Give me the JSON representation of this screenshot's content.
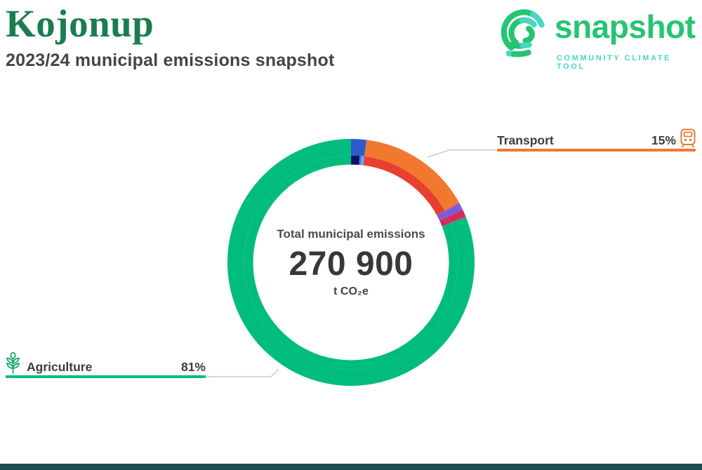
{
  "header": {
    "municipality": "Kojonup",
    "subtitle": "2023/24 municipal emissions snapshot",
    "title_color": "#1a7d4f",
    "subtitle_color": "#454545"
  },
  "logo": {
    "wordmark": "snapshot",
    "tagline": "COMMUNITY CLIMATE TOOL",
    "green": "#25c573",
    "teal": "#49d6c6"
  },
  "chart_data": {
    "type": "donut",
    "title": "Total municipal emissions",
    "center": {
      "label": "Total municipal emissions",
      "value": "270 900",
      "unit": "t CO₂e"
    },
    "total_t_co2e": 270900,
    "leader_color": "#c9c9c9",
    "outer_ring": [
      {
        "label": "",
        "percent": 2,
        "color": "#2e5ccc"
      },
      {
        "label": "Transport",
        "percent": 15,
        "color": "#f1782e"
      },
      {
        "label": "",
        "percent": 1,
        "color": "#7a5cd6"
      },
      {
        "label": "",
        "percent": 1,
        "color": "#d62a64"
      },
      {
        "label": "Agriculture",
        "percent": 81,
        "color": "#00bd7e"
      }
    ],
    "inner_ring": [
      {
        "label": "",
        "percent": 1.3,
        "color": "#0d0f6e"
      },
      {
        "label": "",
        "percent": 0.3,
        "color": "#4f74e3"
      },
      {
        "label": "",
        "percent": 0.4,
        "color": "#6aa3f7"
      },
      {
        "label": "",
        "percent": 15,
        "color": "#e8402e"
      },
      {
        "label": "",
        "percent": 1,
        "color": "#7a5cd6"
      },
      {
        "label": "",
        "percent": 1,
        "color": "#d62a64"
      },
      {
        "label": "",
        "percent": 81,
        "color": "#00bd7e"
      }
    ],
    "callouts": [
      {
        "label": "Transport",
        "value": "15%",
        "icon": "train-icon",
        "color": "#f1782e",
        "icon_color": "#e87a2e",
        "position": "top-right"
      },
      {
        "label": "Agriculture",
        "value": "81%",
        "icon": "wheat-plant-icon",
        "color": "#00bd7e",
        "icon_color": "#16a468",
        "position": "bottom-left"
      }
    ]
  },
  "footer": {
    "bar_color": "#1b4e4f"
  }
}
